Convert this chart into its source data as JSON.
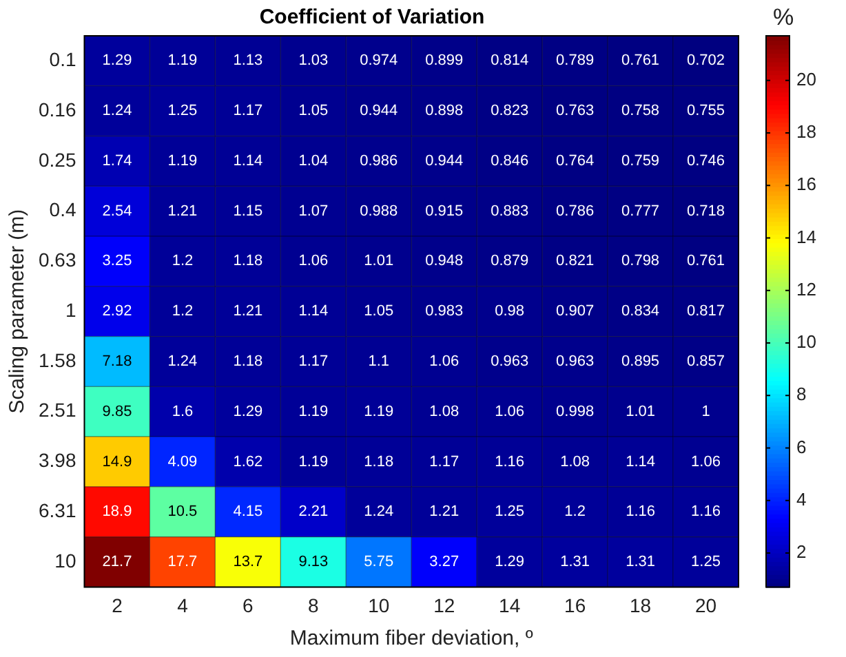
{
  "chart_data": {
    "type": "heatmap",
    "title": "Coefficient of Variation",
    "xlabel": "Maximum fiber deviation, º",
    "ylabel": "Scaling parameter (m)",
    "clabel": "%",
    "categories": [
      "2",
      "4",
      "6",
      "8",
      "10",
      "12",
      "14",
      "16",
      "18",
      "20"
    ],
    "y_categories": [
      "0.1",
      "0.16",
      "0.25",
      "0.4",
      "0.63",
      "1",
      "1.58",
      "2.51",
      "3.98",
      "6.31",
      "10"
    ],
    "cells": [
      [
        1.29,
        1.19,
        1.13,
        1.03,
        0.974,
        0.899,
        0.814,
        0.789,
        0.761,
        0.702
      ],
      [
        1.24,
        1.25,
        1.17,
        1.05,
        0.944,
        0.898,
        0.823,
        0.763,
        0.758,
        0.755
      ],
      [
        1.74,
        1.19,
        1.14,
        1.04,
        0.986,
        0.944,
        0.846,
        0.764,
        0.759,
        0.746
      ],
      [
        2.54,
        1.21,
        1.15,
        1.07,
        0.988,
        0.915,
        0.883,
        0.786,
        0.777,
        0.718
      ],
      [
        3.25,
        1.2,
        1.18,
        1.06,
        1.01,
        0.948,
        0.879,
        0.821,
        0.798,
        0.761
      ],
      [
        2.92,
        1.2,
        1.21,
        1.14,
        1.05,
        0.983,
        0.98,
        0.907,
        0.834,
        0.817
      ],
      [
        7.18,
        1.24,
        1.18,
        1.17,
        1.1,
        1.06,
        0.963,
        0.963,
        0.895,
        0.857
      ],
      [
        9.85,
        1.6,
        1.29,
        1.19,
        1.19,
        1.08,
        1.06,
        0.998,
        1.01,
        1
      ],
      [
        14.9,
        4.09,
        1.62,
        1.19,
        1.18,
        1.17,
        1.16,
        1.08,
        1.14,
        1.06
      ],
      [
        18.9,
        10.5,
        4.15,
        2.21,
        1.24,
        1.21,
        1.25,
        1.2,
        1.16,
        1.16
      ],
      [
        21.7,
        17.7,
        13.7,
        9.13,
        5.75,
        3.27,
        1.29,
        1.31,
        1.31,
        1.25
      ]
    ],
    "clim": [
      0.702,
      21.7
    ],
    "cticks": [
      2,
      4,
      6,
      8,
      10,
      12,
      14,
      16,
      18,
      20
    ],
    "data_labels": true
  }
}
